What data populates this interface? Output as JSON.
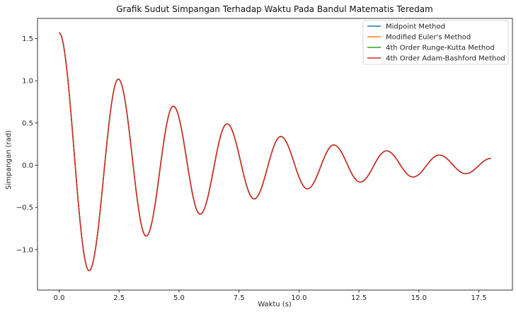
{
  "chart_data": {
    "type": "line",
    "title": "Grafik Sudut Simpangan Terhadap Waktu Pada Bandul Matematis Teredam",
    "xlabel": "Waktu (s)",
    "ylabel": "Simpangan (rad)",
    "xlim": [
      -0.9,
      18.9
    ],
    "ylim": [
      -1.48,
      1.74
    ],
    "xticks": [
      0.0,
      2.5,
      5.0,
      7.5,
      10.0,
      12.5,
      15.0,
      17.5
    ],
    "xtick_labels": [
      "0.0",
      "2.5",
      "5.0",
      "7.5",
      "10.0",
      "12.5",
      "15.0",
      "17.5"
    ],
    "yticks": [
      -1.0,
      -0.5,
      0.0,
      0.5,
      1.0,
      1.5
    ],
    "ytick_labels": [
      "−1.0",
      "−0.5",
      "0.0",
      "0.5",
      "1.0",
      "1.5"
    ],
    "grid": false,
    "legend_position": "top-right",
    "series": [
      {
        "name": "Midpoint Method",
        "color": "#1f77b4"
      },
      {
        "name": "Modified Euler's Method",
        "color": "#ff7f0e"
      },
      {
        "name": "4th Order Runge-Kutta Method",
        "color": "#2ca02c"
      },
      {
        "name": "4th Order Adam-Bashford Method",
        "color": "#d62728"
      }
    ],
    "x": [
      0.0,
      1.25,
      2.47,
      3.63,
      4.76,
      5.88,
      7.0,
      8.13,
      9.24,
      10.35,
      11.45,
      12.55,
      13.65,
      14.75,
      15.85,
      16.95,
      18.0
    ],
    "values": [
      1.57,
      -1.25,
      1.02,
      -0.84,
      0.7,
      -0.58,
      0.49,
      -0.4,
      0.34,
      -0.28,
      0.24,
      -0.2,
      0.17,
      -0.14,
      0.12,
      -0.1,
      0.08
    ]
  }
}
